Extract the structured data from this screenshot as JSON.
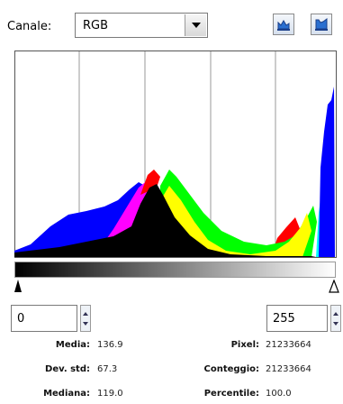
{
  "channel": {
    "label": "Canale:",
    "selected": "RGB"
  },
  "icons": {
    "linear": "linear-histogram-icon",
    "log": "log-histogram-icon"
  },
  "colors": {
    "red": "#ff0000",
    "green": "#00ff00",
    "blue": "#0000ff",
    "yellow": "#ffff00",
    "magenta": "#ff00ff",
    "cyan": "#00ffff",
    "black": "#000000"
  },
  "range": {
    "start": "0",
    "end": "255"
  },
  "stats": {
    "mean_label": "Media:",
    "mean": "136.9",
    "std_label": "Dev. std:",
    "std": "67.3",
    "median_label": "Mediana:",
    "median": "119.0",
    "pixels_label": "Pixel:",
    "pixels": "21233664",
    "count_label": "Conteggio:",
    "count": "21233664",
    "percentile_label": "Percentile:",
    "percentile": "100.0"
  }
}
